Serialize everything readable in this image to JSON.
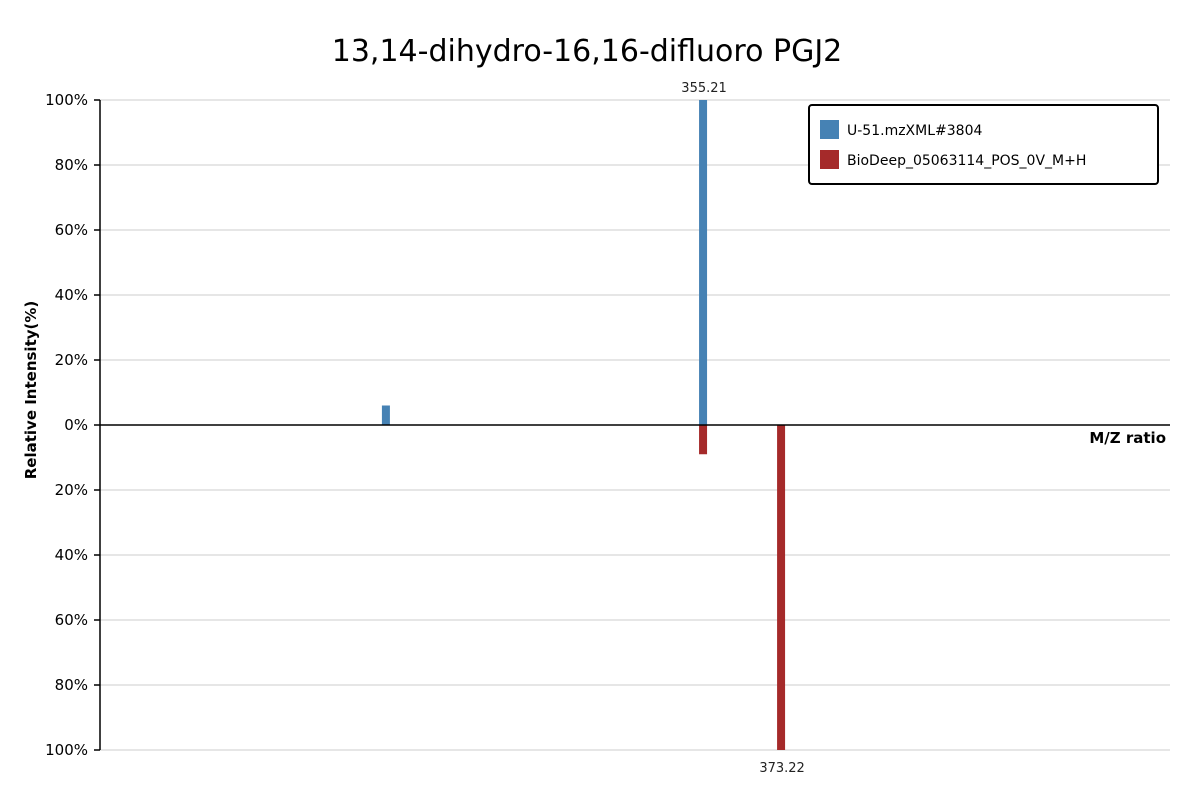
{
  "chart_data": {
    "type": "bar",
    "title": "13,14-dihydro-16,16-difluoro PGJ2",
    "xlabel": "M/Z ratio",
    "ylabel": "Relative Intensity(%)",
    "y_tick_labels_top": [
      "100%",
      "80%",
      "60%",
      "40%",
      "20%",
      "0%"
    ],
    "y_tick_labels_bottom": [
      "20%",
      "40%",
      "60%",
      "80%",
      "100%"
    ],
    "ylim": [
      -100,
      100
    ],
    "xlim": [
      216,
      463
    ],
    "grid": true,
    "legend_position": "top-right",
    "series": [
      {
        "name": "U-51.mzXML#3804",
        "color": "#4682b4",
        "direction": "up",
        "peaks": [
          {
            "mz": 282.0,
            "intensity": 6
          },
          {
            "mz": 355.21,
            "intensity": 100,
            "label": "355.21"
          }
        ]
      },
      {
        "name": "BioDeep_05063114_POS_0V_M+H",
        "color": "#a52a2a",
        "direction": "down",
        "peaks": [
          {
            "mz": 355.21,
            "intensity": 9
          },
          {
            "mz": 373.22,
            "intensity": 100,
            "label": "373.22"
          }
        ]
      }
    ]
  }
}
